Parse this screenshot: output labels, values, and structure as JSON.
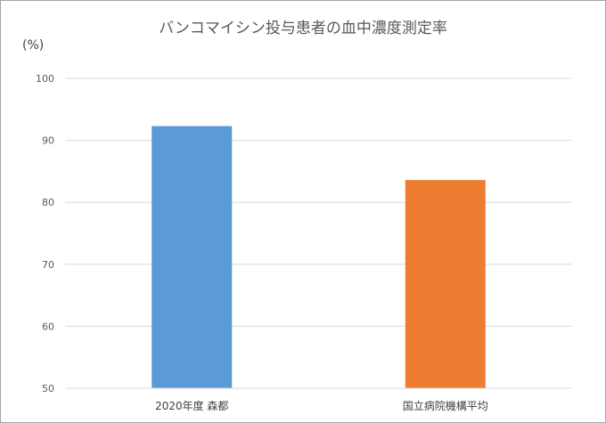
{
  "chart_data": {
    "type": "bar",
    "title": "バンコマイシン投与患者の血中濃度測定率",
    "unit_label": "(%)",
    "categories": [
      "2020年度 森都",
      "国立病院機構平均"
    ],
    "values": [
      92.3,
      83.6
    ],
    "colors": [
      "#5b9bd5",
      "#ed7d31"
    ],
    "ylim": [
      50,
      100
    ],
    "yticks": [
      "50",
      "60",
      "70",
      "80",
      "90",
      "100"
    ],
    "grid": true,
    "legend": "none"
  }
}
